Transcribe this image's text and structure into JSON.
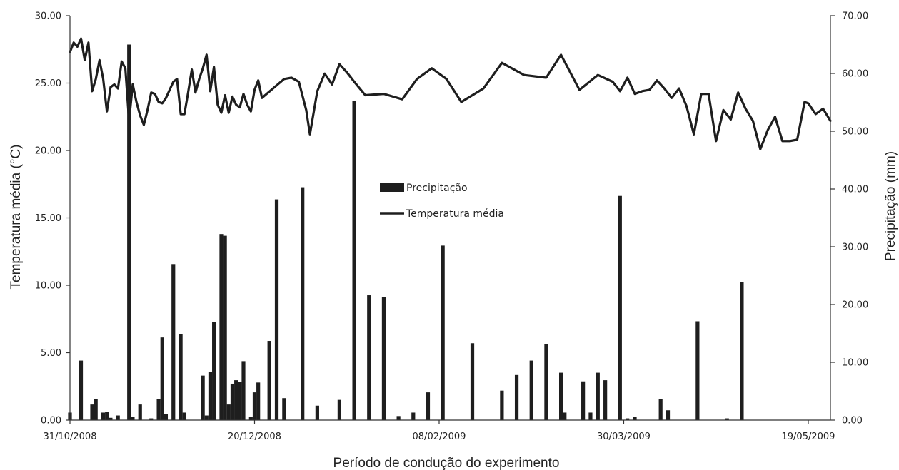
{
  "chart_data": {
    "type": "bar+line",
    "xlabel": "Período de condução do experimento",
    "ylabel_left": "Temperatura média (°C)",
    "ylabel_right": "Precipitação (mm)",
    "ylim_left": [
      0,
      30
    ],
    "ylim_right": [
      0,
      70
    ],
    "yticks_left": [
      "0.00",
      "5.00",
      "10.00",
      "15.00",
      "20.00",
      "25.00",
      "30.00"
    ],
    "yticks_right": [
      "0.00",
      "10.00",
      "20.00",
      "30.00",
      "40.00",
      "50.00",
      "60.00",
      "70.00"
    ],
    "x_start": "2008-10-31",
    "x_end": "2009-05-25",
    "xticks": [
      {
        "date": "2008-10-31",
        "label": "31/10/2008"
      },
      {
        "date": "2008-12-20",
        "label": "20/12/2008"
      },
      {
        "date": "2009-02-08",
        "label": "08/02/2009"
      },
      {
        "date": "2009-03-30",
        "label": "30/03/2009"
      },
      {
        "date": "2009-05-19",
        "label": "19/05/2009"
      }
    ],
    "legend": {
      "placement": "center",
      "precip": "Precipitação",
      "temp": "Temperatura média"
    },
    "colors": {
      "bars": "#1e1e1e",
      "line": "#1e1e1e",
      "axes": "#333333"
    },
    "precipitation": {
      "name": "Precipitação",
      "axis": "right",
      "points": [
        [
          "2008-10-31",
          1.3
        ],
        [
          "2008-11-03",
          10.3
        ],
        [
          "2008-11-06",
          2.7
        ],
        [
          "2008-11-07",
          3.7
        ],
        [
          "2008-11-09",
          1.3
        ],
        [
          "2008-11-10",
          1.4
        ],
        [
          "2008-11-11",
          0.4
        ],
        [
          "2008-11-13",
          0.8
        ],
        [
          "2008-11-16",
          65.0
        ],
        [
          "2008-11-17",
          0.5
        ],
        [
          "2008-11-19",
          2.7
        ],
        [
          "2008-11-22",
          0.3
        ],
        [
          "2008-11-24",
          3.7
        ],
        [
          "2008-11-25",
          14.3
        ],
        [
          "2008-11-26",
          1.0
        ],
        [
          "2008-11-28",
          27.0
        ],
        [
          "2008-11-30",
          14.9
        ],
        [
          "2008-12-01",
          1.3
        ],
        [
          "2008-12-06",
          7.7
        ],
        [
          "2008-12-07",
          0.8
        ],
        [
          "2008-12-08",
          8.3
        ],
        [
          "2008-12-09",
          17.0
        ],
        [
          "2008-12-11",
          32.2
        ],
        [
          "2008-12-12",
          31.9
        ],
        [
          "2008-12-13",
          2.7
        ],
        [
          "2008-12-14",
          6.3
        ],
        [
          "2008-12-15",
          6.9
        ],
        [
          "2008-12-16",
          6.6
        ],
        [
          "2008-12-17",
          10.2
        ],
        [
          "2008-12-19",
          0.5
        ],
        [
          "2008-12-20",
          4.8
        ],
        [
          "2008-12-21",
          6.5
        ],
        [
          "2008-12-24",
          13.7
        ],
        [
          "2008-12-26",
          38.2
        ],
        [
          "2008-12-28",
          3.8
        ],
        [
          "2009-01-02",
          40.3
        ],
        [
          "2009-01-06",
          2.5
        ],
        [
          "2009-01-12",
          3.5
        ],
        [
          "2009-01-16",
          55.2
        ],
        [
          "2009-01-20",
          21.6
        ],
        [
          "2009-01-24",
          21.3
        ],
        [
          "2009-01-28",
          0.7
        ],
        [
          "2009-02-01",
          1.3
        ],
        [
          "2009-02-05",
          4.8
        ],
        [
          "2009-02-09",
          30.2
        ],
        [
          "2009-02-17",
          13.3
        ],
        [
          "2009-02-25",
          5.1
        ],
        [
          "2009-03-01",
          7.8
        ],
        [
          "2009-03-05",
          10.3
        ],
        [
          "2009-03-09",
          13.2
        ],
        [
          "2009-03-13",
          8.2
        ],
        [
          "2009-03-14",
          1.3
        ],
        [
          "2009-03-19",
          6.7
        ],
        [
          "2009-03-21",
          1.3
        ],
        [
          "2009-03-23",
          8.2
        ],
        [
          "2009-03-25",
          6.9
        ],
        [
          "2009-03-29",
          38.8
        ],
        [
          "2009-03-31",
          0.3
        ],
        [
          "2009-04-02",
          0.6
        ],
        [
          "2009-04-09",
          3.6
        ],
        [
          "2009-04-11",
          1.7
        ],
        [
          "2009-04-19",
          17.1
        ],
        [
          "2009-04-27",
          0.3
        ],
        [
          "2009-05-01",
          23.9
        ]
      ]
    },
    "temperature": {
      "name": "Temperatura média",
      "axis": "left",
      "points": [
        [
          "2008-10-31",
          27.3
        ],
        [
          "2008-11-01",
          28.0
        ],
        [
          "2008-11-02",
          27.7
        ],
        [
          "2008-11-03",
          28.3
        ],
        [
          "2008-11-04",
          26.7
        ],
        [
          "2008-11-05",
          28.0
        ],
        [
          "2008-11-06",
          24.4
        ],
        [
          "2008-11-07",
          25.3
        ],
        [
          "2008-11-08",
          26.7
        ],
        [
          "2008-11-09",
          25.3
        ],
        [
          "2008-11-10",
          22.9
        ],
        [
          "2008-11-11",
          24.7
        ],
        [
          "2008-11-12",
          24.9
        ],
        [
          "2008-11-13",
          24.6
        ],
        [
          "2008-11-14",
          26.6
        ],
        [
          "2008-11-15",
          26.1
        ],
        [
          "2008-11-16",
          22.2
        ],
        [
          "2008-11-17",
          24.9
        ],
        [
          "2008-11-18",
          23.6
        ],
        [
          "2008-11-19",
          22.6
        ],
        [
          "2008-11-20",
          21.9
        ],
        [
          "2008-11-21",
          23.0
        ],
        [
          "2008-11-22",
          24.3
        ],
        [
          "2008-11-23",
          24.2
        ],
        [
          "2008-11-24",
          23.6
        ],
        [
          "2008-11-25",
          23.5
        ],
        [
          "2008-11-26",
          23.9
        ],
        [
          "2008-11-27",
          24.5
        ],
        [
          "2008-11-28",
          25.1
        ],
        [
          "2008-11-29",
          25.3
        ],
        [
          "2008-11-30",
          22.7
        ],
        [
          "2008-12-01",
          22.7
        ],
        [
          "2008-12-02",
          24.3
        ],
        [
          "2008-12-03",
          26.0
        ],
        [
          "2008-12-04",
          24.3
        ],
        [
          "2008-12-05",
          25.3
        ],
        [
          "2008-12-06",
          26.1
        ],
        [
          "2008-12-07",
          27.1
        ],
        [
          "2008-12-08",
          24.4
        ],
        [
          "2008-12-09",
          26.2
        ],
        [
          "2008-12-10",
          23.4
        ],
        [
          "2008-12-11",
          22.8
        ],
        [
          "2008-12-12",
          24.1
        ],
        [
          "2008-12-13",
          22.8
        ],
        [
          "2008-12-14",
          24.0
        ],
        [
          "2008-12-15",
          23.4
        ],
        [
          "2008-12-16",
          23.2
        ],
        [
          "2008-12-17",
          24.2
        ],
        [
          "2008-12-18",
          23.4
        ],
        [
          "2008-12-19",
          22.9
        ],
        [
          "2008-12-20",
          24.5
        ],
        [
          "2008-12-21",
          25.2
        ],
        [
          "2008-12-22",
          23.9
        ],
        [
          "2008-12-25",
          24.6
        ],
        [
          "2008-12-28",
          25.3
        ],
        [
          "2008-12-30",
          25.4
        ],
        [
          "2009-01-01",
          25.1
        ],
        [
          "2009-01-03",
          23.0
        ],
        [
          "2009-01-04",
          21.2
        ],
        [
          "2009-01-06",
          24.4
        ],
        [
          "2009-01-08",
          25.7
        ],
        [
          "2009-01-10",
          24.9
        ],
        [
          "2009-01-12",
          26.4
        ],
        [
          "2009-01-14",
          25.8
        ],
        [
          "2009-01-16",
          25.1
        ],
        [
          "2009-01-19",
          24.1
        ],
        [
          "2009-01-24",
          24.2
        ],
        [
          "2009-01-29",
          23.8
        ],
        [
          "2009-02-02",
          25.3
        ],
        [
          "2009-02-06",
          26.1
        ],
        [
          "2009-02-10",
          25.3
        ],
        [
          "2009-02-14",
          23.6
        ],
        [
          "2009-02-20",
          24.6
        ],
        [
          "2009-02-25",
          26.5
        ],
        [
          "2009-03-03",
          25.6
        ],
        [
          "2009-03-09",
          25.4
        ],
        [
          "2009-03-13",
          27.1
        ],
        [
          "2009-03-18",
          24.5
        ],
        [
          "2009-03-23",
          25.6
        ],
        [
          "2009-03-27",
          25.1
        ],
        [
          "2009-03-29",
          24.4
        ],
        [
          "2009-03-31",
          25.4
        ],
        [
          "2009-04-02",
          24.2
        ],
        [
          "2009-04-04",
          24.4
        ],
        [
          "2009-04-06",
          24.5
        ],
        [
          "2009-04-08",
          25.2
        ],
        [
          "2009-04-10",
          24.6
        ],
        [
          "2009-04-12",
          23.9
        ],
        [
          "2009-04-14",
          24.6
        ],
        [
          "2009-04-16",
          23.3
        ],
        [
          "2009-04-18",
          21.2
        ],
        [
          "2009-04-20",
          24.2
        ],
        [
          "2009-04-22",
          24.2
        ],
        [
          "2009-04-24",
          20.7
        ],
        [
          "2009-04-26",
          23.0
        ],
        [
          "2009-04-28",
          22.3
        ],
        [
          "2009-04-30",
          24.3
        ],
        [
          "2009-05-02",
          23.1
        ],
        [
          "2009-05-04",
          22.2
        ],
        [
          "2009-05-06",
          20.1
        ],
        [
          "2009-05-08",
          21.5
        ],
        [
          "2009-05-10",
          22.5
        ],
        [
          "2009-05-12",
          20.7
        ],
        [
          "2009-05-14",
          20.7
        ],
        [
          "2009-05-16",
          20.8
        ],
        [
          "2009-05-18",
          23.6
        ],
        [
          "2009-05-19",
          23.5
        ],
        [
          "2009-05-21",
          22.7
        ],
        [
          "2009-05-23",
          23.1
        ],
        [
          "2009-05-25",
          22.2
        ]
      ]
    }
  }
}
